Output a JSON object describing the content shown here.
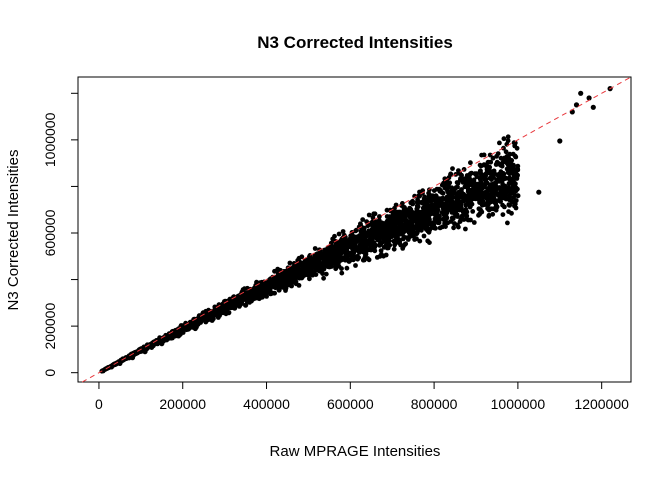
{
  "chart_data": {
    "type": "scatter",
    "title": "N3 Corrected Intensities",
    "xlabel": "Raw MPRAGE Intensities",
    "ylabel": "N3 Corrected Intensities",
    "xlim": [
      -50000,
      1270000
    ],
    "ylim": [
      -40000,
      1270000
    ],
    "x_ticks": [
      0,
      200000,
      400000,
      600000,
      800000,
      1000000,
      1200000
    ],
    "x_tick_labels": [
      "0",
      "200000",
      "400000",
      "600000",
      "800000",
      "1000000",
      "1200000"
    ],
    "y_ticks": [
      0,
      200000,
      600000,
      1000000
    ],
    "y_tick_labels": [
      "0",
      "200000",
      "600000",
      "1000000"
    ],
    "y_minor_ticks": [
      400000,
      800000,
      1200000
    ],
    "point_color": "#000000",
    "reference_line": {
      "type": "identity",
      "slope": 1,
      "intercept": 0,
      "color": "#e8383d",
      "dashed": true
    },
    "grid": false,
    "legend": "none",
    "series": [
      {
        "x": [
          10000,
          30000,
          50000,
          80000,
          110000,
          150000,
          190000,
          230000,
          270000,
          310000,
          350000,
          390000,
          430000,
          470000,
          510000,
          550000,
          590000,
          630000,
          670000,
          710000,
          750000,
          790000,
          830000,
          870000,
          910000,
          950000,
          980000,
          1050000,
          1100000,
          1130000,
          1140000,
          1150000,
          1170000,
          1180000,
          1220000,
          980000,
          1000000,
          900000
        ],
        "y": [
          8000,
          25000,
          40000,
          65000,
          90000,
          125000,
          158000,
          190000,
          225000,
          258000,
          290000,
          325000,
          355000,
          390000,
          420000,
          455000,
          488000,
          520000,
          548000,
          580000,
          610000,
          640000,
          665000,
          690000,
          700000,
          712000,
          720000,
          775000,
          995000,
          1120000,
          1150000,
          1200000,
          1180000,
          1140000,
          1220000,
          900000,
          760000,
          780000
        ]
      }
    ],
    "point_clouds": [
      {
        "x_range": [
          5000,
          1000000
        ],
        "ratio_range": [
          0.68,
          1.06
        ],
        "count": 2600,
        "seed": 7
      }
    ]
  }
}
